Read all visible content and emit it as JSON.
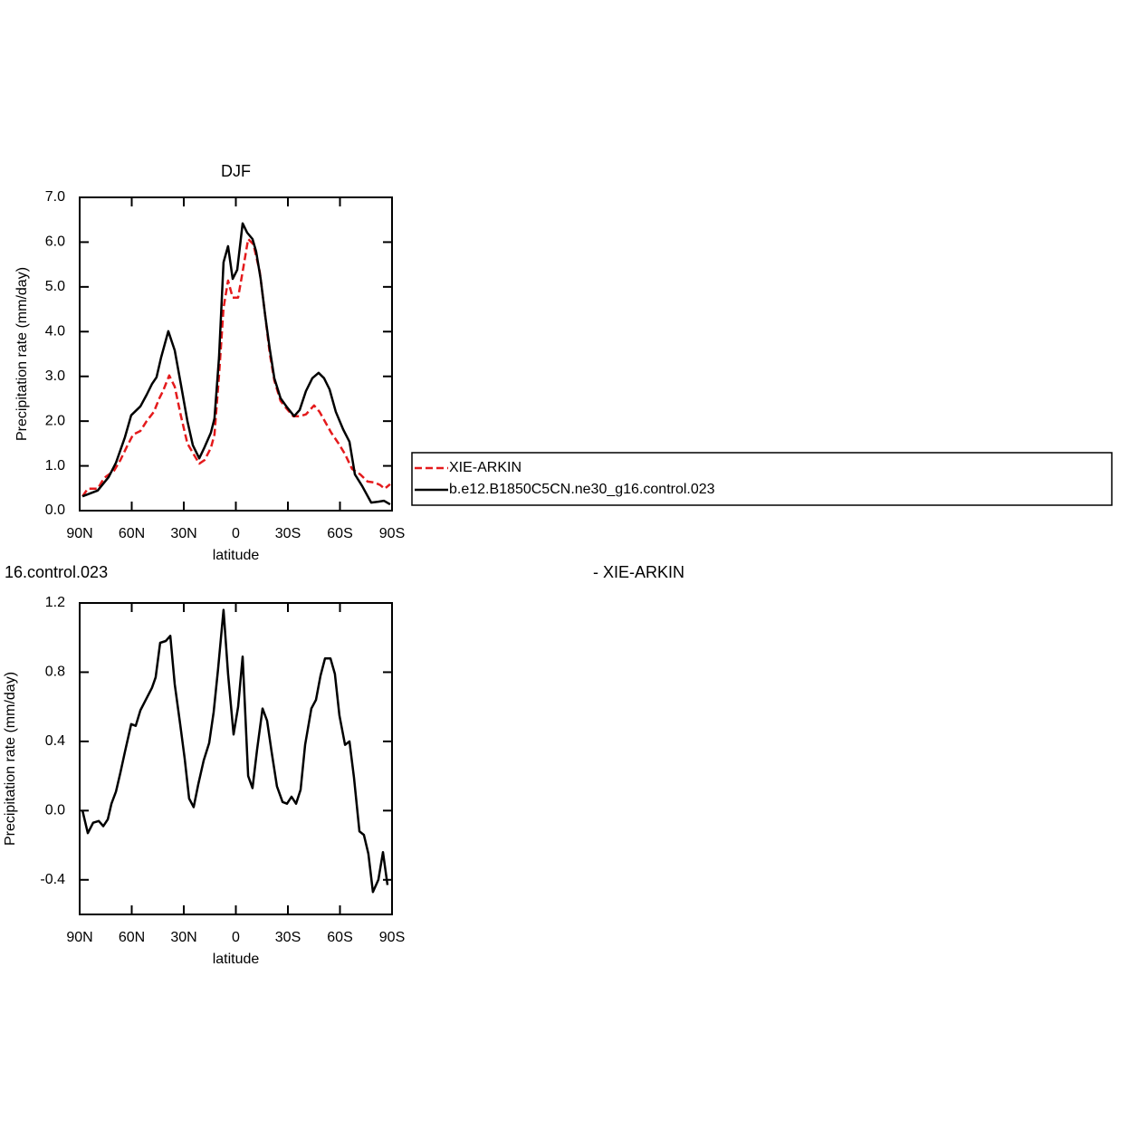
{
  "chart_data": [
    {
      "type": "line",
      "title": "DJF",
      "xlabel": "latitude",
      "ylabel": "Precipitation rate (mm/day)",
      "xlim": [
        90,
        -90
      ],
      "xticks": [
        {
          "value": 90,
          "label": "90N"
        },
        {
          "value": 60,
          "label": "60N"
        },
        {
          "value": 30,
          "label": "30N"
        },
        0,
        {
          "value": -30,
          "label": "30S"
        },
        {
          "value": -60,
          "label": "60S"
        },
        {
          "value": -90,
          "label": "90S"
        }
      ],
      "ylim": [
        0,
        7
      ],
      "yticks": [
        {
          "value": 0,
          "label": "0.0"
        },
        {
          "value": 1,
          "label": "1.0"
        },
        {
          "value": 2,
          "label": "2.0"
        },
        {
          "value": 3,
          "label": "3.0"
        },
        {
          "value": 4,
          "label": "4.0"
        },
        {
          "value": 5,
          "label": "5.0"
        },
        {
          "value": 6,
          "label": "6.0"
        },
        {
          "value": 7,
          "label": "7.0"
        }
      ],
      "legend": true,
      "series": [
        {
          "name": "XIE-ARKIN",
          "color": "#e41a1c",
          "dashed": true,
          "x": [
            88.4,
            85.3,
            79.6,
            75.9,
            70.2,
            66.5,
            62.9,
            59.2,
            55.0,
            51.4,
            47.2,
            44.1,
            42.0,
            38.4,
            35.2,
            31.6,
            27.9,
            24.3,
            21.1,
            18.0,
            14.4,
            12.3,
            9.7,
            7.1,
            4.5,
            1.8,
            -1.3,
            -3.9,
            -7.1,
            -10.1,
            -13.8,
            -17.0,
            -19.5,
            -22.2,
            -25.8,
            -29.5,
            -33.1,
            -36.8,
            -40.4,
            -45.1,
            -48.2,
            -51.8,
            -55.0,
            -59.2,
            -62.9,
            -67.0,
            -71.7,
            -75.9,
            -80.0,
            -83.2,
            -85.8,
            -88.9
          ],
          "values": [
            0.32,
            0.49,
            0.49,
            0.73,
            0.89,
            1.13,
            1.42,
            1.7,
            1.78,
            2.0,
            2.21,
            2.51,
            2.67,
            3.02,
            2.77,
            2.11,
            1.5,
            1.26,
            1.05,
            1.13,
            1.4,
            1.7,
            3.02,
            4.53,
            5.14,
            4.76,
            4.76,
            5.34,
            6.07,
            5.95,
            5.34,
            4.33,
            3.52,
            2.91,
            2.45,
            2.27,
            2.11,
            2.11,
            2.15,
            2.35,
            2.21,
            1.96,
            1.74,
            1.5,
            1.26,
            0.93,
            0.81,
            0.65,
            0.63,
            0.57,
            0.49,
            0.59
          ]
        },
        {
          "name": "b.e12.B1850C5CN.ne30_g16.control.023",
          "color": "#000000",
          "dashed": false,
          "x": [
            88.4,
            79.6,
            73.3,
            69.1,
            63.9,
            60.3,
            55.0,
            51.4,
            48.3,
            45.7,
            43.1,
            38.9,
            35.2,
            31.6,
            27.9,
            24.8,
            21.1,
            18.0,
            14.4,
            12.3,
            9.7,
            7.1,
            4.5,
            1.8,
            -0.8,
            -3.9,
            -6.5,
            -9.6,
            -11.7,
            -14.3,
            -17.0,
            -19.5,
            -22.2,
            -25.8,
            -29.5,
            -33.6,
            -36.8,
            -40.4,
            -44.1,
            -47.7,
            -50.8,
            -54.0,
            -57.6,
            -61.8,
            -65.5,
            -68.6,
            -72.8,
            -78.0,
            -82.1,
            -85.3,
            -88.9
          ],
          "values": [
            0.32,
            0.45,
            0.75,
            1.07,
            1.64,
            2.13,
            2.33,
            2.59,
            2.83,
            2.98,
            3.42,
            4.01,
            3.58,
            2.81,
            2.0,
            1.46,
            1.17,
            1.42,
            1.74,
            2.06,
            3.42,
            5.55,
            5.91,
            5.18,
            5.38,
            6.42,
            6.21,
            6.07,
            5.79,
            5.18,
            4.33,
            3.62,
            2.96,
            2.51,
            2.31,
            2.11,
            2.25,
            2.67,
            2.96,
            3.08,
            2.96,
            2.71,
            2.21,
            1.82,
            1.54,
            0.81,
            0.55,
            0.18,
            0.2,
            0.22,
            0.14
          ]
        }
      ]
    },
    {
      "type": "line",
      "title_left": "16.control.023",
      "title_right": "- XIE-ARKIN",
      "xlabel": "latitude",
      "ylabel": "Precipitation rate (mm/day)",
      "xlim": [
        90,
        -90
      ],
      "xticks": [
        {
          "value": 90,
          "label": "90N"
        },
        {
          "value": 60,
          "label": "60N"
        },
        {
          "value": 30,
          "label": "30N"
        },
        0,
        {
          "value": -30,
          "label": "30S"
        },
        {
          "value": -60,
          "label": "60S"
        },
        {
          "value": -90,
          "label": "90S"
        }
      ],
      "ylim": [
        -0.6,
        1.2
      ],
      "yticks": [
        -0.4,
        {
          "value": 0,
          "label": "0.0"
        },
        0.4,
        0.8,
        1.2
      ],
      "legend": false,
      "series": [
        {
          "color": "#000000",
          "dashed": false,
          "x": [
            88.4,
            85.3,
            82.2,
            79.0,
            76.4,
            73.8,
            71.7,
            69.1,
            66.5,
            63.9,
            60.3,
            57.7,
            55.0,
            51.4,
            48.3,
            46.2,
            43.6,
            40.4,
            37.8,
            35.2,
            32.1,
            29.5,
            26.9,
            24.3,
            21.7,
            18.5,
            15.4,
            12.8,
            10.2,
            7.1,
            4.5,
            1.3,
            -1.3,
            -3.9,
            -7.1,
            -9.6,
            -12.2,
            -15.4,
            -18.0,
            -20.6,
            -23.7,
            -26.9,
            -29.5,
            -32.1,
            -34.7,
            -37.3,
            -39.9,
            -43.5,
            -46.2,
            -48.8,
            -51.4,
            -54.5,
            -57.1,
            -59.7,
            -62.9,
            -65.5,
            -68.1,
            -71.2,
            -73.8,
            -76.4,
            -79.0,
            -82.1,
            -84.8,
            -87.4
          ],
          "values": [
            0.0,
            -0.13,
            -0.07,
            -0.06,
            -0.09,
            -0.05,
            0.04,
            0.11,
            0.22,
            0.34,
            0.5,
            0.49,
            0.58,
            0.65,
            0.71,
            0.77,
            0.97,
            0.98,
            1.01,
            0.73,
            0.5,
            0.3,
            0.07,
            0.02,
            0.15,
            0.29,
            0.39,
            0.57,
            0.82,
            1.16,
            0.79,
            0.44,
            0.6,
            0.89,
            0.2,
            0.13,
            0.35,
            0.59,
            0.52,
            0.34,
            0.14,
            0.05,
            0.04,
            0.08,
            0.04,
            0.12,
            0.38,
            0.59,
            0.64,
            0.78,
            0.88,
            0.88,
            0.79,
            0.55,
            0.38,
            0.4,
            0.19,
            -0.12,
            -0.14,
            -0.25,
            -0.47,
            -0.4,
            -0.24,
            -0.43
          ]
        }
      ]
    }
  ]
}
